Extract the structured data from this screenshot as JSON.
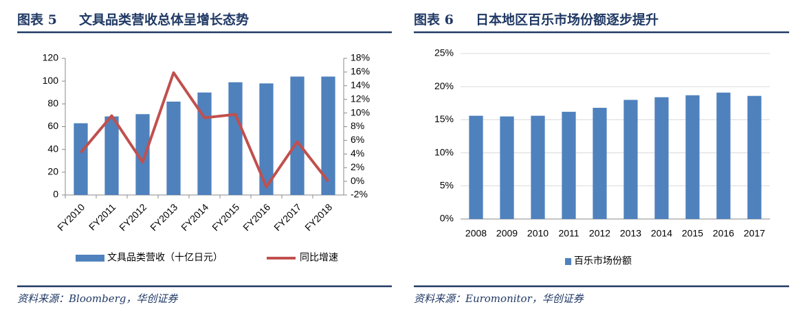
{
  "chart_data": [
    {
      "type": "combo",
      "figure_label": "图表 5",
      "title": "文具品类营收总体呈增长态势",
      "source": "资料来源：Bloomberg，华创证券",
      "categories": [
        "FY2010",
        "FY2011",
        "FY2012",
        "FY2013",
        "FY2014",
        "FY2015",
        "FY2016",
        "FY2017",
        "FY2018"
      ],
      "series": [
        {
          "name": "文具品类营收（十亿日元）",
          "type": "bar",
          "color": "#4f81bd",
          "values": [
            63,
            69,
            71,
            82,
            90,
            99,
            98,
            104,
            104
          ]
        },
        {
          "name": "同比增速",
          "type": "line",
          "axis": "y2",
          "color": "#c0504d",
          "values": [
            4.2,
            9.6,
            2.8,
            15.9,
            9.3,
            9.8,
            -0.8,
            5.8,
            0
          ]
        }
      ],
      "ylim": [
        0,
        120
      ],
      "yticks": [
        0,
        20,
        40,
        60,
        80,
        100,
        120
      ],
      "y2lim": [
        -2,
        18
      ],
      "y2ticks": [
        {
          "value": -2,
          "label": "-2%"
        },
        {
          "value": 0,
          "label": "0%"
        },
        {
          "value": 2,
          "label": "2%"
        },
        {
          "value": 4,
          "label": "4%"
        },
        {
          "value": 6,
          "label": "6%"
        },
        {
          "value": 8,
          "label": "8%"
        },
        {
          "value": 10,
          "label": "10%"
        },
        {
          "value": 12,
          "label": "12%"
        },
        {
          "value": 14,
          "label": "14%"
        },
        {
          "value": 16,
          "label": "16%"
        },
        {
          "value": 18,
          "label": "18%"
        }
      ],
      "grid": false,
      "legend": "bottom"
    },
    {
      "type": "bar",
      "figure_label": "图表 6",
      "title": "日本地区百乐市场份额逐步提升",
      "source": "资料来源：Euromonitor，华创证券",
      "categories": [
        "2008",
        "2009",
        "2010",
        "2011",
        "2012",
        "2013",
        "2014",
        "2015",
        "2016",
        "2017"
      ],
      "series": [
        {
          "name": "百乐市场份额",
          "type": "bar",
          "color": "#4f81bd",
          "values": [
            15.6,
            15.5,
            15.6,
            16.2,
            16.8,
            18.0,
            18.4,
            18.7,
            19.1,
            18.6
          ]
        }
      ],
      "ylim": [
        0,
        25
      ],
      "yticks": [
        {
          "value": 0,
          "label": "0%"
        },
        {
          "value": 5,
          "label": "5%"
        },
        {
          "value": 10,
          "label": "10%"
        },
        {
          "value": 15,
          "label": "15%"
        },
        {
          "value": 20,
          "label": "20%"
        },
        {
          "value": 25,
          "label": "25%"
        }
      ],
      "grid": true,
      "legend": "bottom"
    }
  ]
}
